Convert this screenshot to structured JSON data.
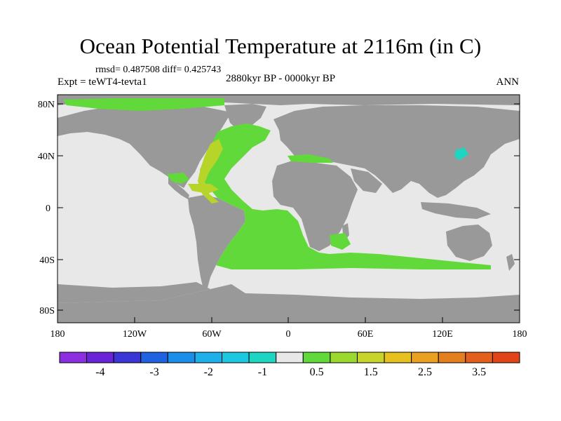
{
  "title": "Ocean Potential Temperature at 2116m (in C)",
  "stats": "rmsd= 0.487508 diff= 0.425743",
  "experiment": "Expt = teWT4-tevta1",
  "period": "2880kyr BP - 0000kyr BP",
  "season": "ANN",
  "colors": {
    "land": "#999999",
    "near_zero": "#e8e8e8",
    "warm_anomaly": "#62d93a",
    "warm_anomaly_2": "#b7d429",
    "cool_anomaly": "#1ed5c2",
    "coast": "#000000"
  },
  "map": {
    "lat_labels": [
      "80N",
      "40N",
      "0",
      "40S",
      "80S"
    ],
    "lon_labels": [
      "180",
      "120W",
      "60W",
      "0",
      "60E",
      "120E",
      "180"
    ]
  },
  "colorbar": {
    "colors": [
      "#8b2fe0",
      "#6a24d8",
      "#3a36d6",
      "#1f63e0",
      "#1a8ee8",
      "#1fb0ea",
      "#1bc8e0",
      "#1ed5c2",
      "#e8e8e8",
      "#62d93a",
      "#9bd92e",
      "#c9d42a",
      "#e6c11f",
      "#eaa020",
      "#e47f1f",
      "#e2601c",
      "#e04418"
    ],
    "labels": [
      "-4",
      "-3",
      "-2",
      "-1",
      "0.5",
      "1.5",
      "2.5",
      "3.5"
    ]
  }
}
